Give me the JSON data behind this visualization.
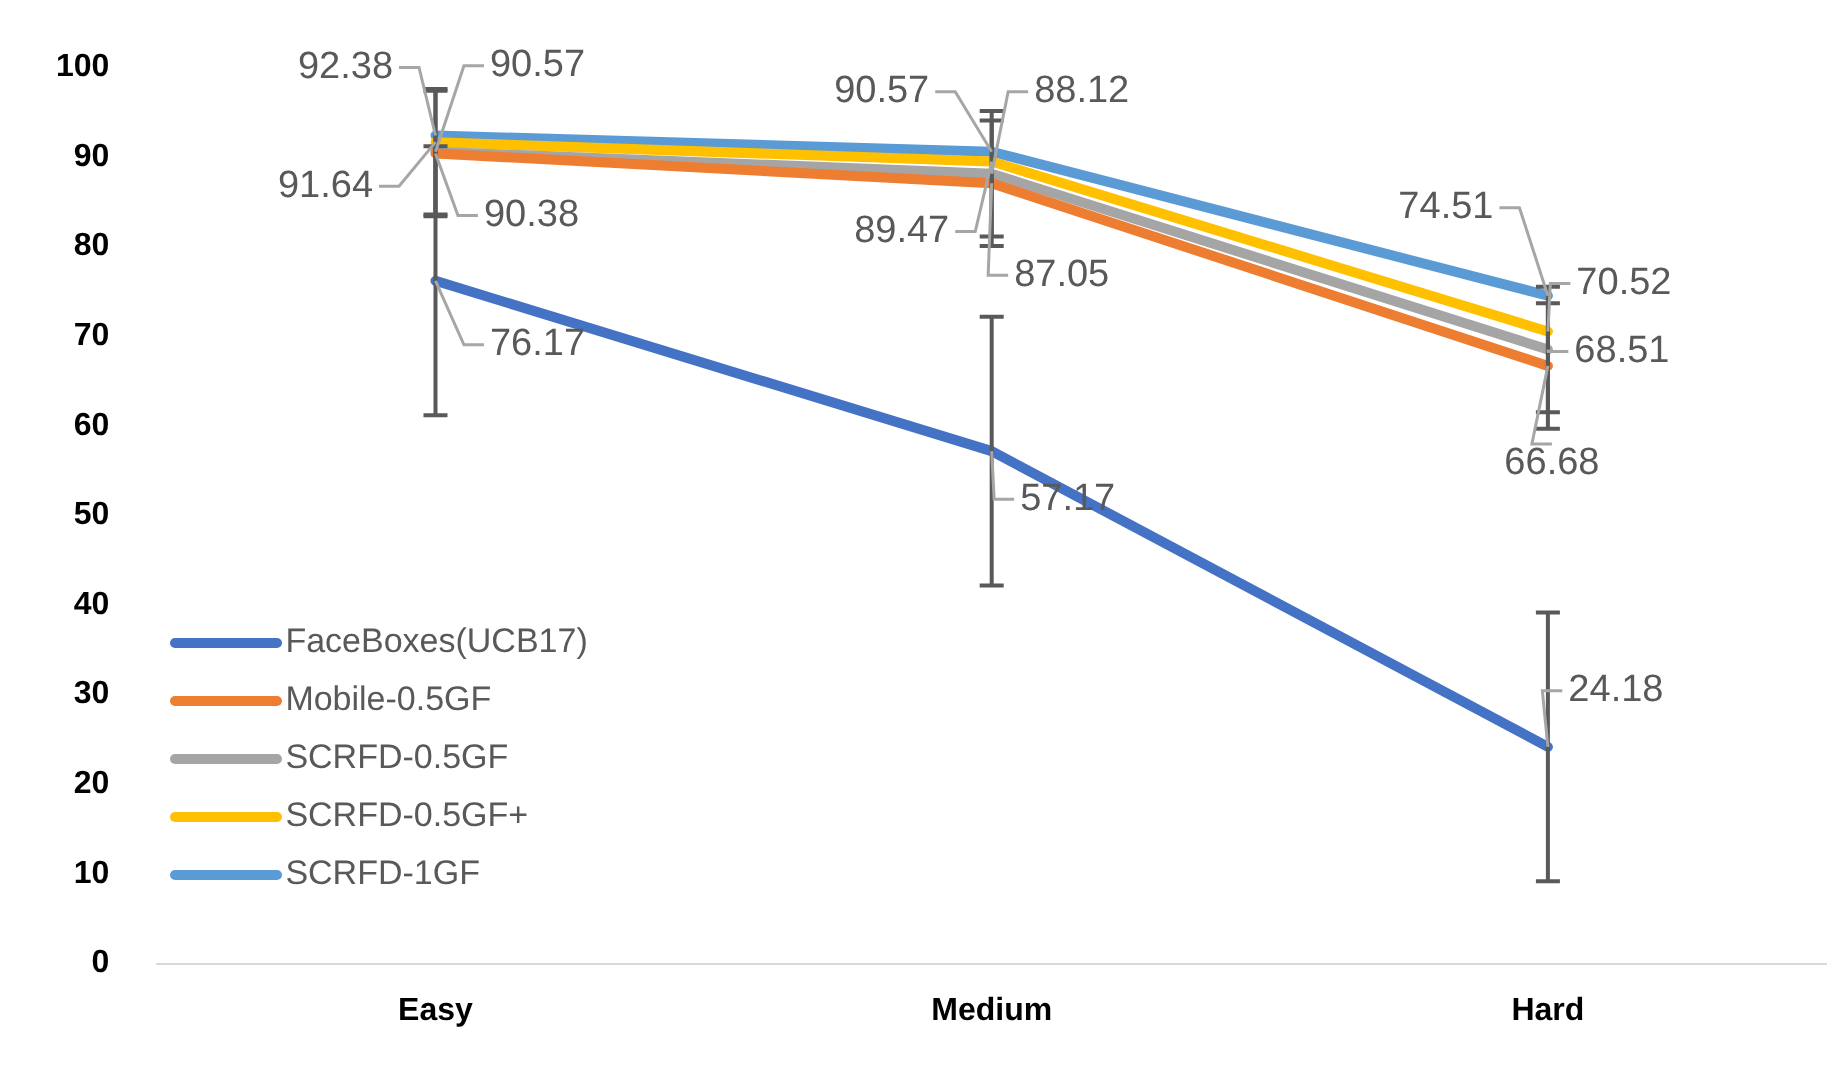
{
  "chart_data": {
    "type": "line",
    "categories": [
      "Easy",
      "Medium",
      "Hard"
    ],
    "ylim": [
      0,
      100
    ],
    "yticks": [
      0,
      10,
      20,
      30,
      40,
      50,
      60,
      70,
      80,
      90,
      100
    ],
    "grid": false,
    "legend": "bottom left",
    "marker": "none",
    "line_style": "solid",
    "data_labels": true,
    "series": [
      {
        "name": "FaceBoxes(UCB17)",
        "color": "#4472c4",
        "values": [
          76.17,
          57.17,
          24.18
        ],
        "errors": [
          15,
          15,
          15
        ]
      },
      {
        "name": "Mobile-0.5GF",
        "color": "#ed7d31",
        "values": [
          90.38,
          87.05,
          66.68
        ],
        "errors": [
          7,
          7,
          7
        ]
      },
      {
        "name": "SCRFD-0.5GF",
        "color": "#a5a5a5",
        "values": [
          90.57,
          88.12,
          68.51
        ],
        "errors": [
          7,
          7,
          7
        ]
      },
      {
        "name": "SCRFD-0.5GF+",
        "color": "#ffc000",
        "values": [
          91.64,
          89.47,
          70.52
        ]
      },
      {
        "name": "SCRFD-1GF",
        "color": "#5b9bd5",
        "values": [
          92.38,
          90.57,
          74.51
        ]
      }
    ]
  }
}
